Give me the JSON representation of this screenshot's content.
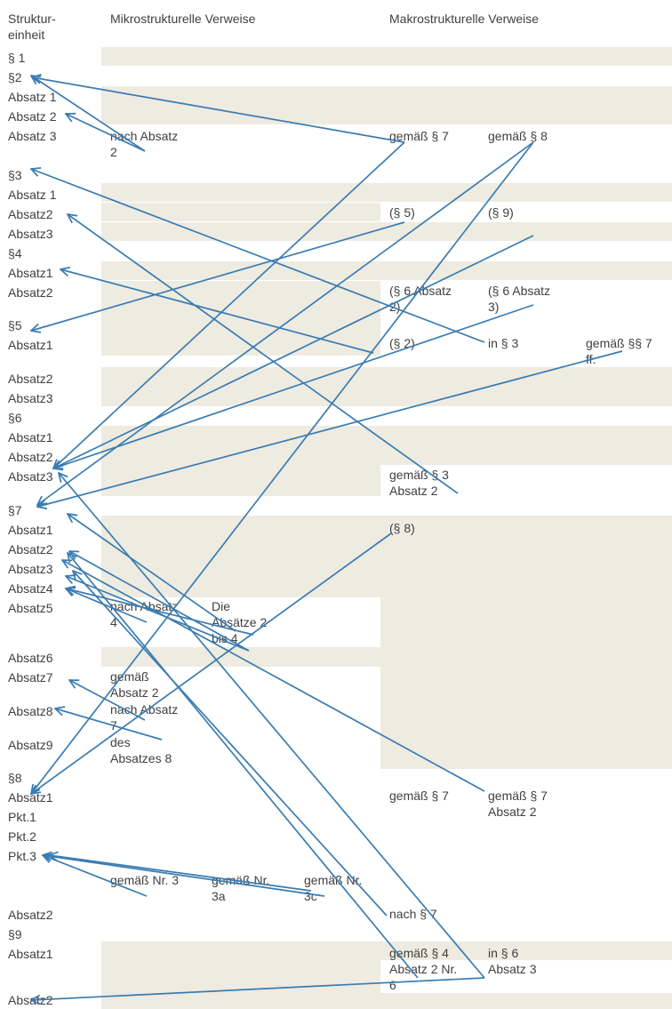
{
  "headers": {
    "struktur": "Struktur-\neinheit",
    "mikro": "Mikrostrukturelle Verweise",
    "makro": "Makrostrukturelle Verweise"
  },
  "structure_labels": [
    "§ 1",
    "§2",
    "Absatz 1",
    "Absatz 2",
    "Absatz 3",
    "§3",
    "Absatz 1",
    "Absatz2",
    "Absatz3",
    "§4",
    "Absatz1",
    "Absatz2",
    "§5",
    "Absatz1",
    "Absatz2",
    "Absatz3",
    "§6",
    "Absatz1",
    "Absatz2",
    "Absatz3",
    "§7",
    "Absatz1",
    "Absatz2",
    "Absatz3",
    "Absatz4",
    "Absatz5",
    "Absatz6",
    "Absatz7",
    "Absatz8",
    "Absatz9",
    "§8",
    "Absatz1",
    "Pkt.1",
    "Pkt.2",
    "Pkt.3",
    "Absatz2",
    "§9",
    "Absatz1",
    "Absatz2"
  ],
  "references": [
    "nach Absatz\n2",
    "gemäß § 7",
    "gemäß § 8",
    "(§ 5)",
    "(§ 9)",
    "(§ 6 Absatz\n2)",
    "(§ 6 Absatz\n3)",
    "(§ 2)",
    "in § 3",
    "gemäß §§ 7\nff.",
    "gemäß § 3\nAbsatz 2",
    "(§ 8)",
    "nach Absatz\n4",
    "Die\nAbsätze 2\nbis 4",
    "gemäß\nAbsatz 2",
    "nach Absatz\n7",
    "des\nAbsatzes 8",
    "gemäß § 7",
    "gemäß § 7\nAbsatz 2",
    "gemäß Nr. 3",
    "gemäß Nr.\n3a",
    "gemäß Nr.\n3c",
    "nach § 7",
    "gemäß § 4\nAbsatz 2 Nr.\n6",
    "in § 6\nAbsatz 3"
  ],
  "colors": {
    "band": "#eeebe1",
    "arrow": "#3a7cb1",
    "text": "#404040"
  }
}
